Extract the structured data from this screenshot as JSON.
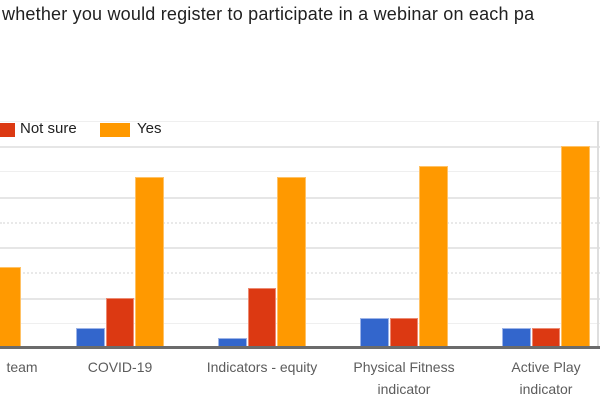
{
  "title": "whether you would register to participate in a webinar on each pa",
  "legend": {
    "items": [
      {
        "label": "Not sure",
        "color": "#DC3912",
        "swatch_cropped_left": true
      },
      {
        "label": "Yes",
        "color": "#FF9900",
        "swatch_cropped_left": false
      }
    ],
    "note_visible": "legend row is horizontally cropped on the left"
  },
  "chart_data": {
    "type": "bar",
    "title": "whether you would register to participate in a webinar on each pa",
    "categories": [
      "team",
      "COVID-19",
      "Indicators - equity",
      "Physical Fitness indicator",
      "Active Play indicator"
    ],
    "category_labels": [
      [
        "team"
      ],
      [
        "COVID-19"
      ],
      [
        "Indicators - equity"
      ],
      [
        "Physical Fitness",
        "indicator"
      ],
      [
        "Active Play",
        "indicator"
      ]
    ],
    "first_category_cropped": true,
    "series": [
      {
        "name": "",
        "legend_cropped": true,
        "color": "#3366CC",
        "values": [
          null,
          2,
          1,
          3,
          2
        ]
      },
      {
        "name": "Not sure",
        "color": "#DC3912",
        "values": [
          null,
          5,
          6,
          3,
          2
        ]
      },
      {
        "name": "Yes",
        "color": "#FF9900",
        "values": [
          8,
          17,
          17,
          18,
          20
        ]
      }
    ],
    "xlabel": "",
    "ylabel": "",
    "ylim": [
      0,
      22.5
    ],
    "gridline_step": 2.5,
    "y_axis_labels_cropped": true,
    "grid": true,
    "legend_position": "top",
    "colors": {
      "blue": "#3366CC",
      "red": "#DC3912",
      "orange": "#FF9900",
      "axis": "#6B6B6B",
      "gridline": "#E6E6E6",
      "label_text": "#5C5C5C",
      "title_text": "#212121"
    }
  }
}
